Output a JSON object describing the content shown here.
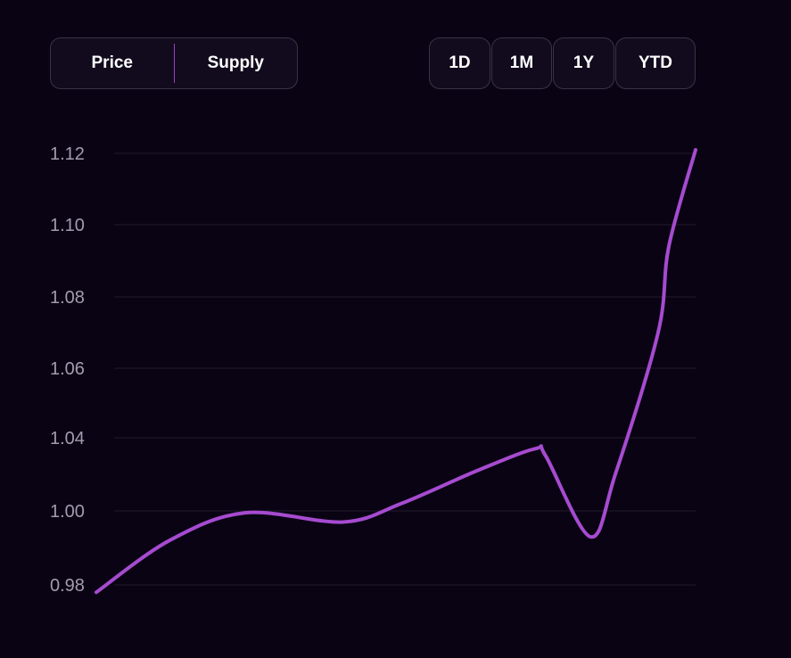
{
  "toggle": {
    "price_label": "Price",
    "supply_label": "Supply"
  },
  "ranges": [
    "1D",
    "1M",
    "1Y",
    "YTD"
  ],
  "colors": {
    "background": "#0a0314",
    "line": "#a64bd0",
    "divider": "#9b3fc9",
    "grid": "#221b2d",
    "tick": "#a29dae"
  },
  "chart_data": {
    "type": "line",
    "title": "",
    "xlabel": "",
    "ylabel": "",
    "y_ticks": [
      "1.12",
      "1.10",
      "1.08",
      "1.06",
      "1.04",
      "1.00",
      "0.98"
    ],
    "grid": true,
    "series": [
      {
        "values": [
          0.978,
          0.992,
          0.9995,
          0.997,
          1.004,
          1.022,
          1.034,
          1.03,
          0.993,
          1.02,
          1.07,
          1.094,
          1.121
        ]
      }
    ]
  }
}
